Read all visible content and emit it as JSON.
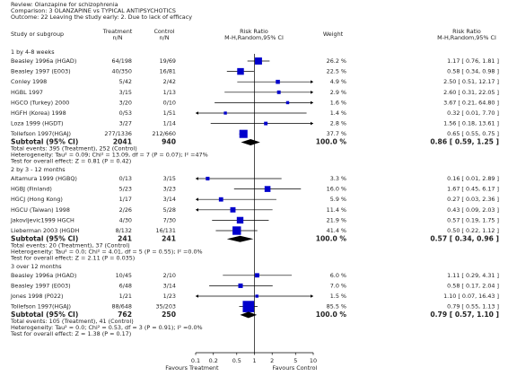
{
  "header": {
    "review": "Review:  Olanzapine for schizophrenia",
    "comparison": "Comparison:  3 OLANZAPINE vs TYPICAL ANTIPSYCHOTICS",
    "outcome": "Outcome:  22 Leaving the study early: 2. Due to lack of efficacy"
  },
  "columns": {
    "study": "Study or subgroup",
    "treatment": [
      "Treatment",
      "n/N"
    ],
    "control": [
      "Control",
      "n/N"
    ],
    "plot": [
      "Risk Ratio",
      "M-H,Random,95% CI"
    ],
    "weight": "Weight",
    "estimate": [
      "Risk Ratio",
      "M-H,Random,95% CI"
    ]
  },
  "chart_data": {
    "type": "forest",
    "log_scale": true,
    "xlim": [
      0.1,
      10
    ],
    "xticks": [
      0.1,
      0.2,
      0.5,
      1,
      2,
      5,
      10
    ],
    "xlabels": [
      "Favours Treatment",
      "Favours Control"
    ],
    "color": "#0000cc",
    "groups": [
      {
        "title": "1 by 4-8 weeks",
        "studies": [
          {
            "name": "Beasley 1996a (HGAD)",
            "treatment": "64/198",
            "control": "19/69",
            "weight": 26.2,
            "weight_label": "26.2 %",
            "rr": 1.17,
            "lo": 0.76,
            "hi": 1.81,
            "ci_label": "1.17 [ 0.76, 1.81 ]"
          },
          {
            "name": "Beasley 1997 (E003)",
            "treatment": "40/350",
            "control": "16/81",
            "weight": 22.5,
            "weight_label": "22.5 %",
            "rr": 0.58,
            "lo": 0.34,
            "hi": 0.98,
            "ci_label": "0.58 [ 0.34, 0.98 ]"
          },
          {
            "name": "Conley 1998",
            "treatment": "5/42",
            "control": "2/42",
            "weight": 4.9,
            "weight_label": "4.9 %",
            "rr": 2.5,
            "lo": 0.51,
            "hi": 12.17,
            "ci_label": "2.50 [ 0.51, 12.17 ]"
          },
          {
            "name": "HGBL 1997",
            "treatment": "3/15",
            "control": "1/13",
            "weight": 2.9,
            "weight_label": "2.9 %",
            "rr": 2.6,
            "lo": 0.31,
            "hi": 22.05,
            "ci_label": "2.60 [ 0.31, 22.05 ]"
          },
          {
            "name": "HGCO (Turkey) 2000",
            "treatment": "3/20",
            "control": "0/10",
            "weight": 1.6,
            "weight_label": "1.6 %",
            "rr": 3.67,
            "lo": 0.21,
            "hi": 64.8,
            "ci_label": "3.67 [ 0.21, 64.80 ]"
          },
          {
            "name": "HGFH (Korea) 1998",
            "treatment": "0/53",
            "control": "1/51",
            "weight": 1.4,
            "weight_label": "1.4 %",
            "rr": 0.32,
            "lo": 0.01,
            "hi": 7.7,
            "ci_label": "0.32 [ 0.01, 7.70 ]"
          },
          {
            "name": "Loza 1999 (HGDT)",
            "treatment": "3/27",
            "control": "1/14",
            "weight": 2.8,
            "weight_label": "2.8 %",
            "rr": 1.56,
            "lo": 0.18,
            "hi": 13.61,
            "ci_label": "1.56 [ 0.18, 13.61 ]"
          },
          {
            "name": "Tollefson 1997(HGAJ)",
            "treatment": "277/1336",
            "control": "212/660",
            "weight": 37.7,
            "weight_label": "37.7 %",
            "rr": 0.65,
            "lo": 0.55,
            "hi": 0.75,
            "ci_label": "0.65 [ 0.55, 0.75 ]"
          }
        ],
        "subtotal": {
          "label": "Subtotal (95% CI)",
          "treatment": 2041,
          "control": 940,
          "weight_label": "100.0 %",
          "rr": 0.86,
          "lo": 0.59,
          "hi": 1.25,
          "ci_label": "0.86 [ 0.59, 1.25 ]"
        },
        "notes": [
          "Total events: 395 (Treatment), 252 (Control)",
          "Heterogeneity: Tau² = 0.09; Chi² = 13.09, df = 7 (P = 0.07); I² =47%",
          "Test for overall effect: Z = 0.81 (P = 0.42)"
        ]
      },
      {
        "title": "2 by 3 - 12 months",
        "studies": [
          {
            "name": "Altamura 1999 (HGBQ)",
            "treatment": "0/13",
            "control": "3/15",
            "weight": 3.3,
            "weight_label": "3.3 %",
            "rr": 0.16,
            "lo": 0.01,
            "hi": 2.89,
            "ci_label": "0.16 [ 0.01, 2.89 ]"
          },
          {
            "name": "HGBJ (Finland)",
            "treatment": "5/23",
            "control": "3/23",
            "weight": 16.0,
            "weight_label": "16.0 %",
            "rr": 1.67,
            "lo": 0.45,
            "hi": 6.17,
            "ci_label": "1.67 [ 0.45, 6.17 ]"
          },
          {
            "name": "HGCJ (Hong Kong)",
            "treatment": "1/17",
            "control": "3/14",
            "weight": 5.9,
            "weight_label": "5.9 %",
            "rr": 0.27,
            "lo": 0.03,
            "hi": 2.36,
            "ci_label": "0.27 [ 0.03, 2.36 ]"
          },
          {
            "name": "HGCU (Taiwan) 1998",
            "treatment": "2/26",
            "control": "5/28",
            "weight": 11.4,
            "weight_label": "11.4 %",
            "rr": 0.43,
            "lo": 0.09,
            "hi": 2.03,
            "ci_label": "0.43 [ 0.09, 2.03 ]"
          },
          {
            "name": "Jakovljevic1999 HGCH",
            "treatment": "4/30",
            "control": "7/30",
            "weight": 21.9,
            "weight_label": "21.9 %",
            "rr": 0.57,
            "lo": 0.19,
            "hi": 1.75,
            "ci_label": "0.57 [ 0.19, 1.75 ]"
          },
          {
            "name": "Lieberman 2003 (HGDH",
            "treatment": "8/132",
            "control": "16/131",
            "weight": 41.4,
            "weight_label": "41.4 %",
            "rr": 0.5,
            "lo": 0.22,
            "hi": 1.12,
            "ci_label": "0.50 [ 0.22, 1.12 ]"
          }
        ],
        "subtotal": {
          "label": "Subtotal (95% CI)",
          "treatment": 241,
          "control": 241,
          "weight_label": "100.0 %",
          "rr": 0.57,
          "lo": 0.34,
          "hi": 0.96,
          "ci_label": "0.57 [ 0.34, 0.96 ]"
        },
        "notes": [
          "Total events: 20 (Treatment), 37 (Control)",
          "Heterogeneity: Tau² = 0.0; Chi² = 4.01, df = 5 (P = 0.55); I² =0.0%",
          "Test for overall effect: Z = 2.11 (P = 0.035)"
        ]
      },
      {
        "title": "3 over 12 months",
        "studies": [
          {
            "name": "Beasley 1996a (HGAD)",
            "treatment": "10/45",
            "control": "2/10",
            "weight": 6.0,
            "weight_label": "6.0 %",
            "rr": 1.11,
            "lo": 0.29,
            "hi": 4.31,
            "ci_label": "1.11 [ 0.29, 4.31 ]"
          },
          {
            "name": "Beasley 1997 (E003)",
            "treatment": "6/48",
            "control": "3/14",
            "weight": 7.0,
            "weight_label": "7.0 %",
            "rr": 0.58,
            "lo": 0.17,
            "hi": 2.04,
            "ci_label": "0.58 [ 0.17, 2.04 ]"
          },
          {
            "name": "Jones 1998 (P022)",
            "treatment": "1/21",
            "control": "1/23",
            "weight": 1.5,
            "weight_label": "1.5 %",
            "rr": 1.1,
            "lo": 0.07,
            "hi": 16.43,
            "ci_label": "1.10 [ 0.07, 16.43 ]"
          },
          {
            "name": "Tollefson 1997(HGAJ)",
            "treatment": "88/648",
            "control": "35/203",
            "weight": 85.5,
            "weight_label": "85.5 %",
            "rr": 0.79,
            "lo": 0.55,
            "hi": 1.13,
            "ci_label": "0.79 [ 0.55, 1.13 ]"
          }
        ],
        "subtotal": {
          "label": "Subtotal (95% CI)",
          "treatment": 762,
          "control": 250,
          "weight_label": "100.0 %",
          "rr": 0.79,
          "lo": 0.57,
          "hi": 1.1,
          "ci_label": "0.79 [ 0.57, 1.10 ]"
        },
        "notes": [
          "Total events: 105 (Treatment), 41 (Control)",
          "Heterogeneity: Tau² = 0.0; Chi² = 0.53, df = 3 (P = 0.91); I² =0.0%",
          "Test for overall effect: Z = 1.38 (P = 0.17)"
        ]
      }
    ]
  }
}
